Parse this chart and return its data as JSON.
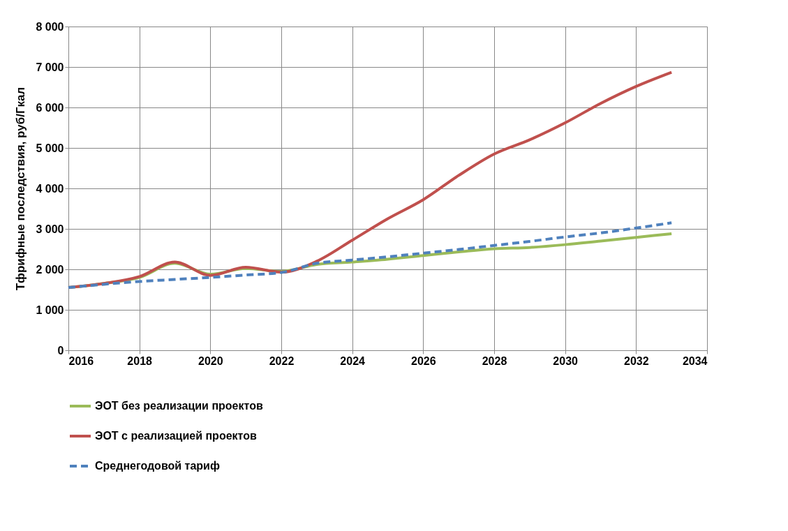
{
  "chart_data": {
    "type": "line",
    "ylabel": "Тфрифные последствия, руб/Гкал",
    "x": [
      2016,
      2017,
      2018,
      2019,
      2020,
      2021,
      2022,
      2023,
      2024,
      2025,
      2026,
      2027,
      2028,
      2029,
      2030,
      2031,
      2032,
      2033
    ],
    "series": [
      {
        "name": "ЭОТ без реализации проектов",
        "color": "#9bbb59",
        "line_style": "solid",
        "values": [
          1550,
          1650,
          1800,
          2150,
          1880,
          2020,
          1950,
          2120,
          2180,
          2250,
          2340,
          2430,
          2510,
          2540,
          2610,
          2700,
          2790,
          2880
        ]
      },
      {
        "name": "ЭОТ с реализацией проектов",
        "color": "#c0504d",
        "line_style": "solid",
        "values": [
          1550,
          1650,
          1820,
          2180,
          1850,
          2050,
          1930,
          2200,
          2720,
          3250,
          3720,
          4320,
          4850,
          5200,
          5620,
          6100,
          6520,
          6870
        ]
      },
      {
        "name": "Среднегодовой тариф",
        "color": "#4f81bd",
        "line_style": "dashed",
        "values": [
          1550,
          1630,
          1700,
          1750,
          1800,
          1860,
          1920,
          2150,
          2230,
          2310,
          2400,
          2490,
          2590,
          2690,
          2800,
          2900,
          3020,
          3150
        ]
      }
    ],
    "xlim": [
      2016,
      2034
    ],
    "xticks": [
      2016,
      2018,
      2020,
      2022,
      2024,
      2026,
      2028,
      2030,
      2032,
      2034
    ],
    "ylim": [
      0,
      8000
    ],
    "yticks": [
      0,
      {
        "value": 1000,
        "label": "1 000"
      },
      {
        "value": 2000,
        "label": "2 000"
      },
      {
        "value": 3000,
        "label": "3 000"
      },
      {
        "value": 4000,
        "label": "4 000"
      },
      {
        "value": 5000,
        "label": "5 000"
      },
      {
        "value": 6000,
        "label": "6 000"
      },
      {
        "value": 7000,
        "label": "7 000"
      },
      {
        "value": 8000,
        "label": "8 000"
      }
    ],
    "grid": true,
    "legend": "bottom",
    "marker": "none"
  }
}
